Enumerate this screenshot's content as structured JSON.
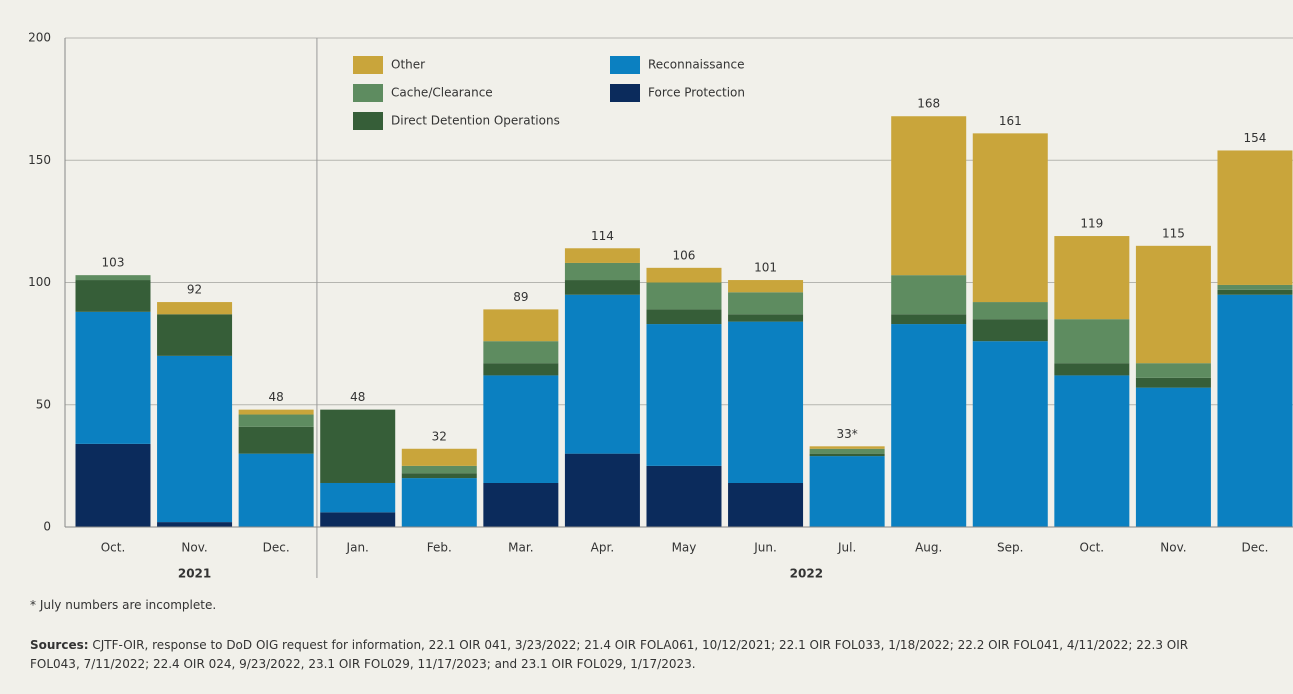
{
  "chart_data": {
    "type": "stacked_bar",
    "groups": [
      {
        "label": "2021",
        "categories": [
          "Oct.",
          "Nov.",
          "Dec."
        ]
      },
      {
        "label": "2022",
        "categories": [
          "Jan.",
          "Feb.",
          "Mar.",
          "Apr.",
          "May",
          "Jun.",
          "Jul.",
          "Aug.",
          "Sep.",
          "Oct.",
          "Nov.",
          "Dec."
        ]
      }
    ],
    "series": [
      {
        "name": "Force Protection",
        "color": "#0b2b5c",
        "values": [
          34,
          2,
          0,
          6,
          0,
          18,
          30,
          25,
          18,
          0,
          0,
          0,
          0,
          0,
          0
        ]
      },
      {
        "name": "Reconnaissance",
        "color": "#0b80c1",
        "values": [
          54,
          68,
          30,
          12,
          20,
          44,
          65,
          58,
          66,
          29,
          83,
          76,
          62,
          57,
          95
        ]
      },
      {
        "name": "Direct Detention Operations",
        "color": "#365e38",
        "values": [
          13,
          17,
          11,
          30,
          2,
          5,
          6,
          6,
          3,
          1,
          4,
          9,
          5,
          4,
          2
        ]
      },
      {
        "name": "Cache/Clearance",
        "color": "#5e8c60",
        "values": [
          2,
          0,
          5,
          0,
          3,
          9,
          7,
          11,
          9,
          2,
          16,
          7,
          18,
          6,
          2
        ]
      },
      {
        "name": "Other",
        "color": "#c9a53b",
        "values": [
          0,
          5,
          2,
          0,
          7,
          13,
          6,
          6,
          5,
          1,
          65,
          69,
          34,
          48,
          55
        ]
      }
    ],
    "totals": [
      103,
      92,
      48,
      48,
      32,
      89,
      114,
      106,
      101,
      33,
      168,
      161,
      119,
      115,
      154
    ],
    "total_labels": [
      "103",
      "92",
      "48",
      "48",
      "32",
      "89",
      "114",
      "106",
      "101",
      "33*",
      "168",
      "161",
      "119",
      "115",
      "154"
    ],
    "ylim": [
      0,
      200
    ],
    "yticks": [
      0,
      50,
      100,
      150,
      200
    ],
    "grid": true,
    "footnote": "* July numbers are incomplete.",
    "sources_label": "Sources:",
    "sources": "CJTF-OIR, response to DoD OIG request for information, 22.1 OIR 041, 3/23/2022; 21.4 OIR FOLA061, 10/12/2021; 22.1 OIR FOL033, 1/18/2022; 22.2 OIR FOL041, 4/11/2022; 22.3 OIR FOL043, 7/11/2022; 22.4 OIR 024, 9/23/2022, 23.1 OIR FOL029, 11/17/2023; and 23.1 OIR FOL029, 1/17/2023."
  }
}
